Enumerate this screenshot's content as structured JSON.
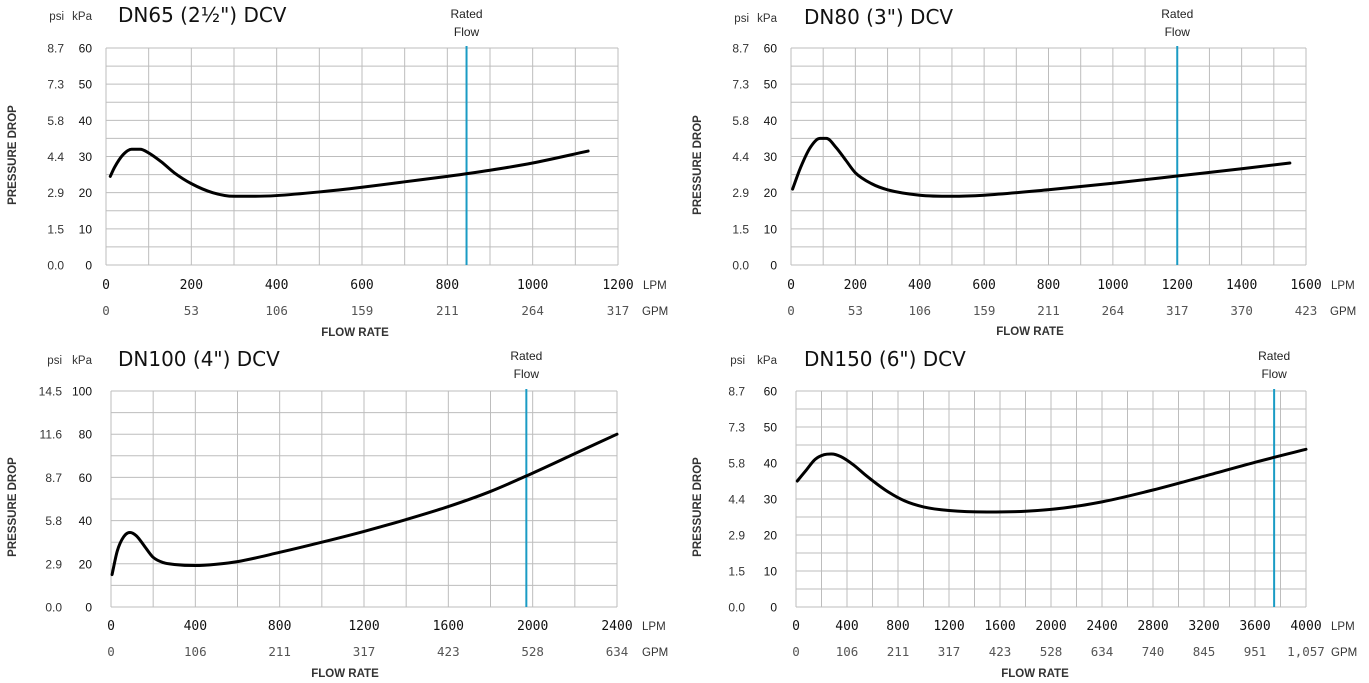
{
  "colors": {
    "curve": "#000000",
    "rated": "#1a9bc4",
    "grid": "#bdbdbd",
    "text": "#222222"
  },
  "chart_data": [
    {
      "type": "line",
      "title": "DN65 (2½\") DCV",
      "xlabel": "FLOW RATE",
      "ylabel": "PRESSURE DROP",
      "units": {
        "psi": "psi",
        "kpa": "kPa",
        "lpm": "LPM",
        "gpm": "GPM"
      },
      "rated_label": [
        "Rated",
        "Flow"
      ],
      "rated_flow_lpm": 845,
      "xlim": [
        0,
        1200
      ],
      "ylim": [
        0,
        60
      ],
      "x_ticks": [
        "0",
        "200",
        "400",
        "600",
        "800",
        "1000",
        "1200"
      ],
      "gpm_ticks": [
        "0",
        "53",
        "106",
        "159",
        "211",
        "264",
        "317"
      ],
      "gpm_tick_lpm": [
        0,
        200,
        400,
        600,
        800,
        1000,
        1200
      ],
      "kpa_ticks": [
        "0",
        "10",
        "20",
        "30",
        "40",
        "50",
        "60"
      ],
      "psi_ticks": [
        "0.0",
        "1.5",
        "2.9",
        "4.4",
        "5.8",
        "7.3",
        "8.7"
      ],
      "v_grid_step": 100,
      "h_grid_step": 5,
      "x": [
        10,
        20,
        40,
        60,
        80,
        100,
        130,
        160,
        200,
        250,
        300,
        350,
        400,
        500,
        600,
        700,
        800,
        900,
        1000,
        1130
      ],
      "y": [
        24.5,
        27,
        30.5,
        32,
        32,
        31,
        28.5,
        25.5,
        22.5,
        20,
        19,
        19,
        19.2,
        20.2,
        21.5,
        23,
        24.5,
        26.2,
        28.2,
        31.5
      ]
    },
    {
      "type": "line",
      "title": "DN80 (3\") DCV",
      "xlabel": "FLOW RATE",
      "ylabel": "PRESSURE DROP",
      "units": {
        "psi": "psi",
        "kpa": "kPa",
        "lpm": "LPM",
        "gpm": "GPM"
      },
      "rated_label": [
        "Rated",
        "Flow"
      ],
      "rated_flow_lpm": 1200,
      "xlim": [
        0,
        1600
      ],
      "ylim": [
        0,
        60
      ],
      "x_ticks": [
        "0",
        "200",
        "400",
        "600",
        "800",
        "1000",
        "1200",
        "1400",
        "1600"
      ],
      "gpm_ticks": [
        "0",
        "53",
        "106",
        "159",
        "211",
        "264",
        "317",
        "370",
        "423"
      ],
      "gpm_tick_lpm": [
        0,
        200,
        400,
        600,
        800,
        1000,
        1200,
        1400,
        1600
      ],
      "kpa_ticks": [
        "0",
        "10",
        "20",
        "30",
        "40",
        "50",
        "60"
      ],
      "psi_ticks": [
        "0.0",
        "1.5",
        "2.9",
        "4.4",
        "5.8",
        "7.3",
        "8.7"
      ],
      "v_grid_step": 100,
      "h_grid_step": 5,
      "x": [
        5,
        30,
        60,
        90,
        110,
        140,
        170,
        200,
        250,
        300,
        400,
        500,
        600,
        800,
        1000,
        1200,
        1400,
        1550
      ],
      "y": [
        21,
        27,
        32.5,
        35,
        35,
        32.5,
        29,
        25.5,
        22.5,
        20.8,
        19.3,
        19,
        19.3,
        20.8,
        22.6,
        24.6,
        26.6,
        28.2
      ]
    },
    {
      "type": "line",
      "title": "DN100 (4\") DCV",
      "xlabel": "FLOW RATE",
      "ylabel": "PRESSURE DROP",
      "units": {
        "psi": "psi",
        "kpa": "kPa",
        "lpm": "LPM",
        "gpm": "GPM"
      },
      "rated_label": [
        "Rated",
        "Flow"
      ],
      "rated_flow_lpm": 1970,
      "xlim": [
        0,
        2400
      ],
      "ylim": [
        0,
        100
      ],
      "x_ticks": [
        "0",
        "400",
        "800",
        "1200",
        "1600",
        "2000",
        "2400"
      ],
      "gpm_ticks": [
        "0",
        "106",
        "211",
        "317",
        "423",
        "528",
        "634"
      ],
      "gpm_tick_lpm": [
        0,
        400,
        800,
        1200,
        1600,
        2000,
        2400
      ],
      "kpa_ticks": [
        "0",
        "20",
        "40",
        "60",
        "80",
        "100"
      ],
      "psi_ticks": [
        "0.0",
        "2.9",
        "5.8",
        "8.7",
        "11.6",
        "14.5"
      ],
      "v_grid_step": 200,
      "h_grid_step": 10,
      "x": [
        5,
        30,
        60,
        90,
        120,
        160,
        200,
        250,
        300,
        400,
        500,
        600,
        800,
        1000,
        1200,
        1400,
        1600,
        1800,
        2000,
        2200,
        2400
      ],
      "y": [
        15,
        26,
        32.5,
        34.5,
        33,
        28,
        23,
        20.5,
        19.7,
        19.2,
        19.8,
        21,
        25.3,
        30,
        35,
        40.5,
        46.5,
        53.5,
        62,
        71,
        80
      ]
    },
    {
      "type": "line",
      "title": "DN150 (6\") DCV",
      "xlabel": "FLOW RATE",
      "ylabel": "PRESSURE DROP",
      "units": {
        "psi": "psi",
        "kpa": "kPa",
        "lpm": "LPM",
        "gpm": "GPM"
      },
      "rated_label": [
        "Rated",
        "Flow"
      ],
      "rated_flow_lpm": 3750,
      "xlim": [
        0,
        4000
      ],
      "ylim": [
        0,
        60
      ],
      "x_ticks": [
        "0",
        "400",
        "800",
        "1200",
        "1600",
        "2000",
        "2400",
        "2800",
        "3200",
        "3600",
        "4000"
      ],
      "gpm_ticks": [
        "0",
        "106",
        "211",
        "317",
        "423",
        "528",
        "634",
        "740",
        "845",
        "951",
        "1,057"
      ],
      "gpm_tick_lpm": [
        0,
        400,
        800,
        1200,
        1600,
        2000,
        2400,
        2800,
        3200,
        3600,
        4000
      ],
      "kpa_ticks": [
        "0",
        "10",
        "20",
        "30",
        "40",
        "50",
        "60"
      ],
      "psi_ticks": [
        "0.0",
        "1.5",
        "2.9",
        "4.4",
        "5.8",
        "7.3",
        "8.7"
      ],
      "v_grid_step": 200,
      "h_grid_step": 5,
      "x": [
        10,
        80,
        150,
        220,
        280,
        350,
        450,
        550,
        700,
        850,
        1000,
        1200,
        1500,
        1800,
        2100,
        2400,
        2800,
        3200,
        3600,
        4000
      ],
      "y": [
        35,
        38,
        41,
        42.3,
        42.5,
        41.8,
        39.5,
        36.5,
        32.5,
        29.5,
        27.8,
        26.8,
        26.4,
        26.6,
        27.5,
        29.2,
        32.5,
        36.3,
        40.2,
        43.8
      ]
    }
  ]
}
